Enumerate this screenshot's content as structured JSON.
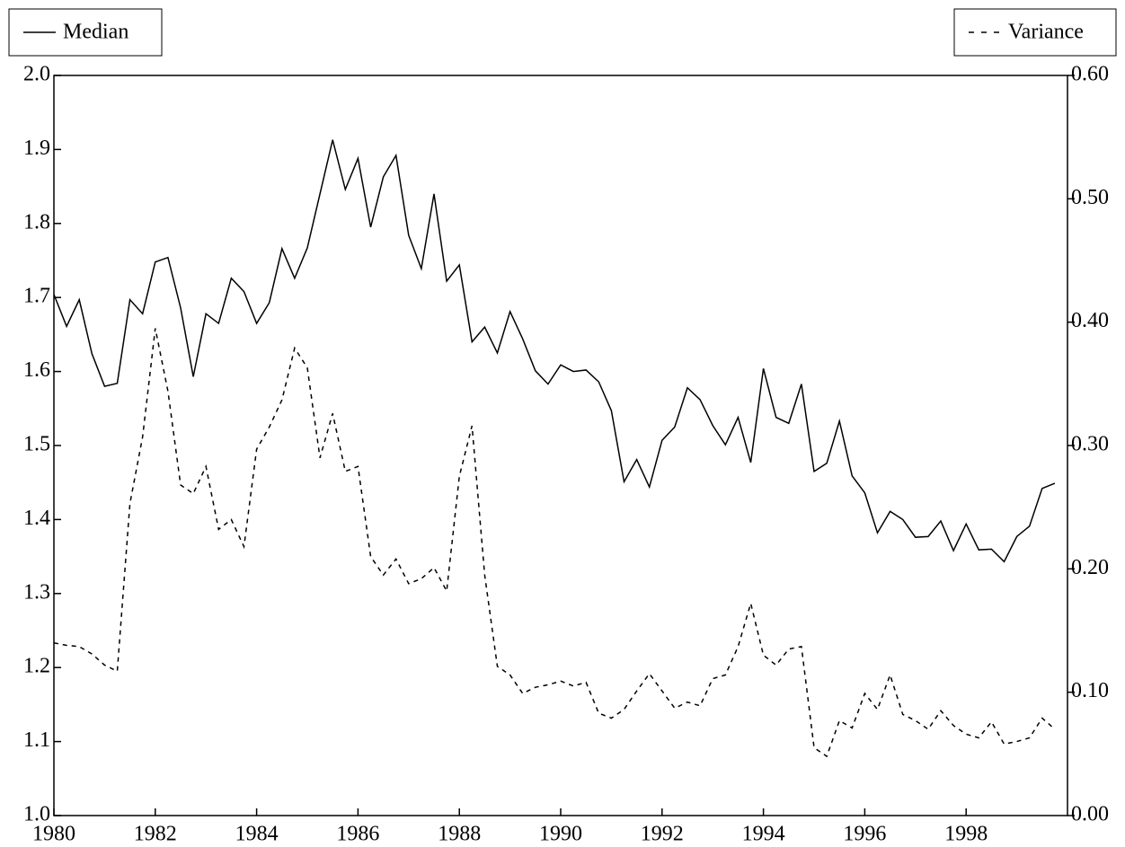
{
  "chart_data": {
    "type": "line",
    "x": [
      1980,
      1980.25,
      1980.5,
      1980.75,
      1981,
      1981.25,
      1981.5,
      1981.75,
      1982,
      1982.25,
      1982.5,
      1982.75,
      1983,
      1983.25,
      1983.5,
      1983.75,
      1984,
      1984.25,
      1984.5,
      1984.75,
      1985,
      1985.25,
      1985.5,
      1985.75,
      1986,
      1986.25,
      1986.5,
      1986.75,
      1987,
      1987.25,
      1987.5,
      1987.75,
      1988,
      1988.25,
      1988.5,
      1988.75,
      1989,
      1989.25,
      1989.5,
      1989.75,
      1990,
      1990.25,
      1990.5,
      1990.75,
      1991,
      1991.25,
      1991.5,
      1991.75,
      1992,
      1992.25,
      1992.5,
      1992.75,
      1993,
      1993.25,
      1993.5,
      1993.75,
      1994,
      1994.25,
      1994.5,
      1994.75,
      1995,
      1995.25,
      1995.5,
      1995.75,
      1996,
      1996.25,
      1996.5,
      1996.75,
      1997,
      1997.25,
      1997.5,
      1997.75,
      1998,
      1998.25,
      1998.5,
      1998.75,
      1999,
      1999.25,
      1999.5,
      1999.75
    ],
    "series": [
      {
        "name": "Median",
        "color": "#000000",
        "dash": "solid",
        "axis": "y",
        "values": [
          1.704,
          1.661,
          1.697,
          1.624,
          1.58,
          1.584,
          1.697,
          1.678,
          1.748,
          1.754,
          1.686,
          1.593,
          1.678,
          1.665,
          1.726,
          1.708,
          1.665,
          1.693,
          1.766,
          1.726,
          1.767,
          1.84,
          1.913,
          1.846,
          1.888,
          1.795,
          1.863,
          1.892,
          1.784,
          1.739,
          1.84,
          1.722,
          1.744,
          1.64,
          1.66,
          1.625,
          1.681,
          1.644,
          1.601,
          1.583,
          1.609,
          1.6,
          1.602,
          1.586,
          1.547,
          1.451,
          1.481,
          1.444,
          1.507,
          1.525,
          1.578,
          1.562,
          1.527,
          1.501,
          1.538,
          1.477,
          1.604,
          1.538,
          1.53,
          1.583,
          1.465,
          1.476,
          1.533,
          1.459,
          1.436,
          1.382,
          1.411,
          1.4,
          1.376,
          1.377,
          1.398,
          1.358,
          1.394,
          1.359,
          1.36,
          1.343,
          1.377,
          1.391,
          1.442,
          1.449
        ]
      },
      {
        "name": "Variance",
        "color": "#000000",
        "dash": "dashed",
        "axis": "y2",
        "values": [
          0.14,
          0.138,
          0.137,
          0.131,
          0.122,
          0.117,
          0.253,
          0.307,
          0.395,
          0.344,
          0.268,
          0.261,
          0.283,
          0.232,
          0.24,
          0.218,
          0.297,
          0.315,
          0.337,
          0.379,
          0.363,
          0.29,
          0.326,
          0.279,
          0.283,
          0.21,
          0.195,
          0.208,
          0.188,
          0.192,
          0.201,
          0.182,
          0.275,
          0.316,
          0.195,
          0.121,
          0.114,
          0.099,
          0.104,
          0.106,
          0.109,
          0.105,
          0.108,
          0.083,
          0.079,
          0.086,
          0.101,
          0.115,
          0.101,
          0.087,
          0.092,
          0.089,
          0.111,
          0.114,
          0.137,
          0.172,
          0.13,
          0.122,
          0.135,
          0.137,
          0.055,
          0.048,
          0.077,
          0.071,
          0.099,
          0.086,
          0.114,
          0.082,
          0.077,
          0.07,
          0.085,
          0.073,
          0.066,
          0.063,
          0.076,
          0.058,
          0.06,
          0.063,
          0.079,
          0.07
        ]
      }
    ],
    "xlim": [
      1980,
      2000
    ],
    "xticks": [
      1980,
      1982,
      1984,
      1986,
      1988,
      1990,
      1992,
      1994,
      1996,
      1998
    ],
    "ylim": [
      1.0,
      2.0
    ],
    "yticks": [
      {
        "value": 1.0,
        "label": "1.0"
      },
      1.1,
      1.2,
      1.3,
      1.4,
      1.5,
      1.6,
      1.7,
      1.8,
      1.9,
      {
        "value": 2.0,
        "label": "2.0"
      }
    ],
    "y2lim": [
      0,
      0.6
    ],
    "y2ticks": [
      {
        "value": 0,
        "label": "0.00"
      },
      {
        "value": 0.1,
        "label": "0.10"
      },
      {
        "value": 0.2,
        "label": "0.20"
      },
      {
        "value": 0.3,
        "label": "0.30"
      },
      {
        "value": 0.4,
        "label": "0.40"
      },
      {
        "value": 0.5,
        "label": "0.50"
      },
      {
        "value": 0.6,
        "label": "0.60"
      }
    ],
    "grid": false
  }
}
